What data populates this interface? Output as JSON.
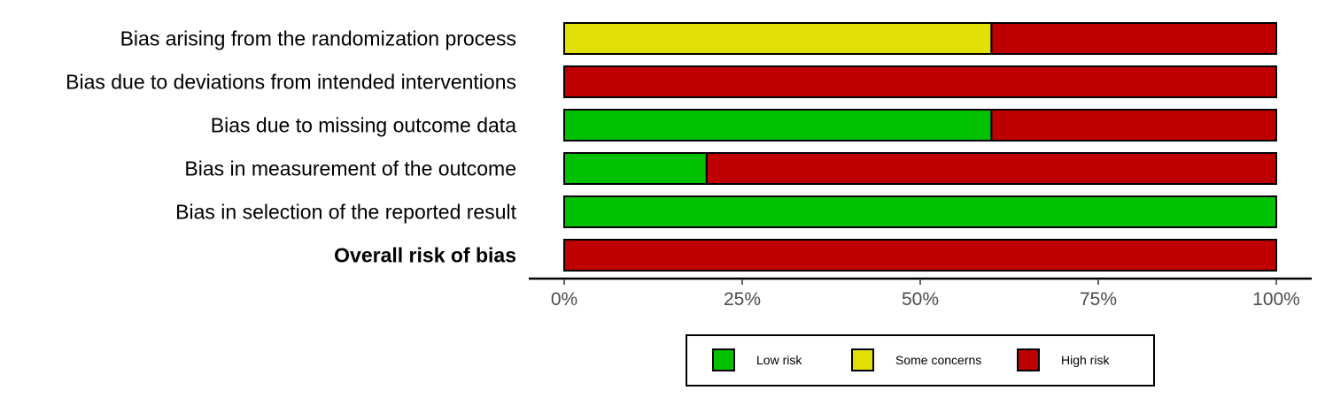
{
  "chart_data": {
    "type": "bar",
    "stacked": true,
    "orientation": "horizontal",
    "categories": [
      "Bias arising from the randomization process",
      "Bias due to deviations from intended interventions",
      "Bias due to missing outcome data",
      "Bias in measurement of the outcome",
      "Bias in selection of the reported result",
      "Overall risk of bias"
    ],
    "bold_categories": [
      "Overall risk of bias"
    ],
    "series": [
      {
        "name": "Low risk",
        "color": "#02C100",
        "values": [
          0,
          0,
          60,
          20,
          100,
          0
        ]
      },
      {
        "name": "Some concerns",
        "color": "#E2DF07",
        "values": [
          60,
          0,
          0,
          0,
          0,
          0
        ]
      },
      {
        "name": "High risk",
        "color": "#BF0000",
        "values": [
          40,
          100,
          40,
          80,
          0,
          100
        ]
      }
    ],
    "xlim": [
      0,
      100
    ],
    "xticks": [
      0,
      25,
      50,
      75,
      100
    ],
    "xtick_labels": [
      "0%",
      "25%",
      "50%",
      "75%",
      "100%"
    ],
    "grid": false,
    "legend_placement": "bottom"
  }
}
